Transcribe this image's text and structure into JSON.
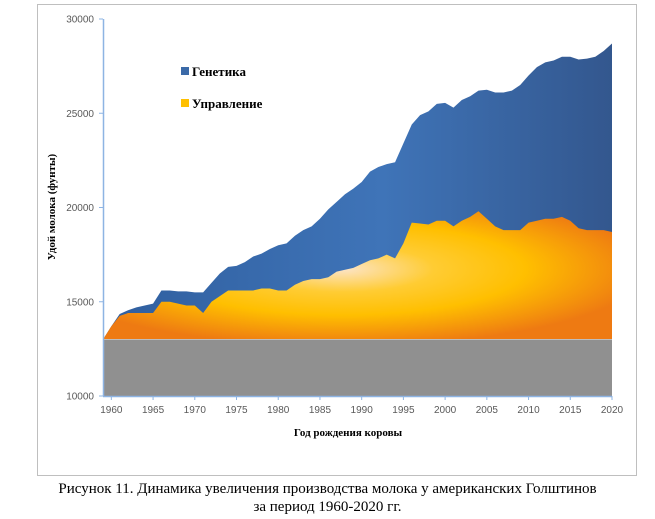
{
  "chart_data": {
    "type": "area",
    "xlabel": "Год рождения коровы",
    "ylabel": "Удой молока (фунты)",
    "ylim": [
      10000,
      30000
    ],
    "xlim": [
      1959,
      2020
    ],
    "yticks": [
      10000,
      15000,
      20000,
      25000,
      30000
    ],
    "xticks": [
      1960,
      1965,
      1970,
      1975,
      1980,
      1985,
      1990,
      1995,
      2000,
      2005,
      2010,
      2015,
      2020
    ],
    "baseline": 13000,
    "x": [
      1959,
      1960,
      1961,
      1962,
      1963,
      1964,
      1965,
      1966,
      1967,
      1968,
      1969,
      1970,
      1971,
      1972,
      1973,
      1974,
      1975,
      1976,
      1977,
      1978,
      1979,
      1980,
      1981,
      1982,
      1983,
      1984,
      1985,
      1986,
      1987,
      1988,
      1989,
      1990,
      1991,
      1992,
      1993,
      1994,
      1995,
      1996,
      1997,
      1998,
      1999,
      2000,
      2001,
      2002,
      2003,
      2004,
      2005,
      2006,
      2007,
      2008,
      2009,
      2010,
      2011,
      2012,
      2013,
      2014,
      2015,
      2016,
      2017,
      2018,
      2019,
      2020
    ],
    "series": [
      {
        "name": "Генетика",
        "color": "#3b6aa8",
        "values": [
          13000,
          13700,
          14350,
          14550,
          14700,
          14800,
          14900,
          15600,
          15600,
          15550,
          15550,
          15500,
          15500,
          16000,
          16500,
          16850,
          16900,
          17100,
          17400,
          17550,
          17800,
          18000,
          18100,
          18500,
          18800,
          19000,
          19400,
          19900,
          20300,
          20700,
          21000,
          21350,
          21900,
          22150,
          22300,
          22400,
          23400,
          24400,
          24900,
          25100,
          25500,
          25550,
          25300,
          25700,
          25900,
          26200,
          26250,
          26100,
          26100,
          26200,
          26500,
          27000,
          27450,
          27700,
          27800,
          28000,
          28000,
          27850,
          27900,
          28000,
          28300,
          28700
        ]
      },
      {
        "name": "Управление",
        "color": "#ffc000",
        "values": [
          13000,
          13700,
          14250,
          14400,
          14400,
          14400,
          14400,
          15000,
          15000,
          14900,
          14800,
          14800,
          14400,
          15000,
          15300,
          15600,
          15600,
          15600,
          15600,
          15700,
          15700,
          15600,
          15600,
          15900,
          16100,
          16200,
          16200,
          16300,
          16600,
          16700,
          16800,
          17000,
          17200,
          17300,
          17500,
          17300,
          18100,
          19200,
          19150,
          19100,
          19300,
          19300,
          19000,
          19300,
          19500,
          19800,
          19400,
          19000,
          18800,
          18800,
          18800,
          19200,
          19300,
          19400,
          19400,
          19500,
          19300,
          18900,
          18800,
          18800,
          18800,
          18700
        ]
      }
    ],
    "base_color": "#909090"
  },
  "caption": {
    "line1": "Рисунок 11. Динамика увеличения производства молока у американских Голштинов",
    "line2": "за период 1960-2020 гг."
  }
}
